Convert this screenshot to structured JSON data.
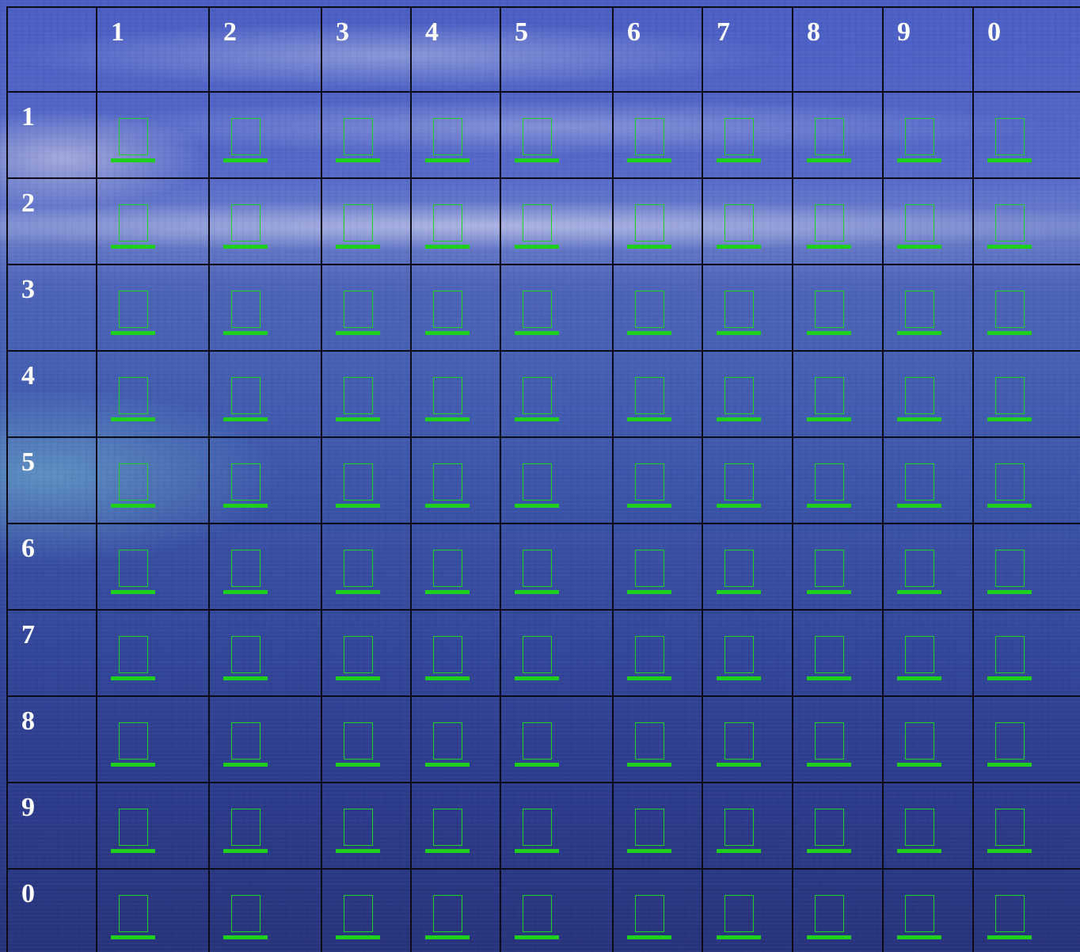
{
  "board": {
    "column_headers": [
      "1",
      "2",
      "3",
      "4",
      "5",
      "6",
      "7",
      "8",
      "9",
      "0"
    ],
    "row_headers": [
      "1",
      "2",
      "3",
      "4",
      "5",
      "6",
      "7",
      "8",
      "9",
      "0"
    ],
    "cell_symbol": "empty-box-icon",
    "colors": {
      "grid_line": "#0c0c18",
      "label_text": "#ffffff",
      "box_outline": "#22d022",
      "underline": "#1ecf1e"
    }
  }
}
